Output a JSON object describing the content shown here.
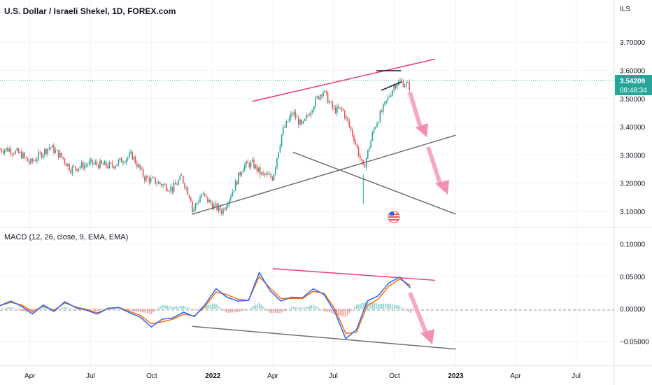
{
  "header": {
    "title": "U.S. Dollar / Israeli Shekel, 1D, FOREX.com",
    "currency": "ILS"
  },
  "indicator": {
    "title": "MACD (12, 26, close, 9, EMA, EMA)"
  },
  "badge": {
    "price": "3.54209",
    "countdown": "08:48:34"
  },
  "colors": {
    "up": "#26a69a",
    "down": "#ef5350",
    "trend_pink": "#f0387a",
    "trend_gray": "#707070",
    "macd_line": "#2962ff",
    "signal_line": "#ff6d00",
    "arrow": "#f48fb1",
    "badge": "#26a69a"
  },
  "icons": [
    "us-flag-icon",
    "pink-arrow-icon"
  ],
  "chart_data": [
    {
      "type": "candlestick",
      "y_ticks": [
        "3.70000",
        "3.60000",
        "3.50000",
        "3.40000",
        "3.30000",
        "3.20000",
        "3.10000"
      ],
      "x_ticks": [
        "Apr",
        "Jul",
        "Oct",
        "2022",
        "Apr",
        "Jul",
        "Oct",
        "2023",
        "Apr",
        "Jul"
      ],
      "ylim": [
        3.06,
        3.78
      ],
      "last_price": 3.54209,
      "series_points": [
        {
          "x": "2021-03",
          "y": 3.32
        },
        {
          "x": "2021-03-20",
          "y": 3.3
        },
        {
          "x": "2021-04",
          "y": 3.27
        },
        {
          "x": "2021-05-01",
          "y": 3.33
        },
        {
          "x": "2021-05-20",
          "y": 3.29
        },
        {
          "x": "2021-06",
          "y": 3.25
        },
        {
          "x": "2021-07",
          "y": 3.27
        },
        {
          "x": "2021-08",
          "y": 3.26
        },
        {
          "x": "2021-09",
          "y": 3.3
        },
        {
          "x": "2021-09-20",
          "y": 3.22
        },
        {
          "x": "2021-10",
          "y": 3.21
        },
        {
          "x": "2021-11",
          "y": 3.18
        },
        {
          "x": "2021-11-15",
          "y": 3.22
        },
        {
          "x": "2021-11-30",
          "y": 3.14
        },
        {
          "x": "2021-12",
          "y": 3.1
        },
        {
          "x": "2021-12-15",
          "y": 3.16
        },
        {
          "x": "2022-01",
          "y": 3.12
        },
        {
          "x": "2022-01-15",
          "y": 3.1
        },
        {
          "x": "2022-02",
          "y": 3.18
        },
        {
          "x": "2022-02-15",
          "y": 3.26
        },
        {
          "x": "2022-03",
          "y": 3.27
        },
        {
          "x": "2022-03-15",
          "y": 3.23
        },
        {
          "x": "2022-04",
          "y": 3.22
        },
        {
          "x": "2022-04-15",
          "y": 3.38
        },
        {
          "x": "2022-05",
          "y": 3.45
        },
        {
          "x": "2022-05-15",
          "y": 3.4
        },
        {
          "x": "2022-06",
          "y": 3.48
        },
        {
          "x": "2022-06-15",
          "y": 3.53
        },
        {
          "x": "2022-07",
          "y": 3.46
        },
        {
          "x": "2022-07-15",
          "y": 3.46
        },
        {
          "x": "2022-08",
          "y": 3.36
        },
        {
          "x": "2022-08-15",
          "y": 3.25
        },
        {
          "x": "2022-09",
          "y": 3.4
        },
        {
          "x": "2022-09-15",
          "y": 3.47
        },
        {
          "x": "2022-10",
          "y": 3.55
        },
        {
          "x": "2022-10-10",
          "y": 3.56
        },
        {
          "x": "2022-10-25",
          "y": 3.54
        }
      ],
      "trendlines": [
        {
          "color": "pink",
          "from": {
            "x": "2022-03",
            "y": 3.49
          },
          "to": {
            "x": "2022-12",
            "y": 3.64
          }
        },
        {
          "color": "gray",
          "from": {
            "x": "2021-12",
            "y": 3.09
          },
          "to": {
            "x": "2023-01",
            "y": 3.37
          }
        },
        {
          "color": "gray",
          "from": {
            "x": "2022-05",
            "y": 3.31
          },
          "to": {
            "x": "2023-01",
            "y": 3.09
          }
        }
      ]
    },
    {
      "type": "line",
      "y_ticks": [
        "0.10000",
        "0.05000",
        "0.00000",
        "−0.05000"
      ],
      "x_ticks": [
        "Apr",
        "Jul",
        "Oct",
        "2022",
        "Apr",
        "Jul",
        "Oct",
        "2023",
        "Apr",
        "Jul"
      ],
      "ylim": [
        -0.085,
        0.12
      ],
      "series": [
        {
          "name": "MACD",
          "values": [
            0.005,
            0.012,
            0.004,
            -0.008,
            0.006,
            -0.004,
            0.011,
            0.002,
            -0.002,
            -0.008,
            0.001,
            0.002,
            -0.006,
            -0.013,
            -0.028,
            -0.016,
            -0.014,
            -0.005,
            -0.012,
            0.007,
            0.031,
            0.018,
            0.012,
            0.013,
            0.056,
            0.028,
            0.012,
            0.018,
            0.017,
            0.031,
            0.022,
            -0.005,
            -0.046,
            -0.032,
            0.012,
            0.02,
            0.04,
            0.049,
            0.032
          ]
        },
        {
          "name": "Signal",
          "values": [
            0.005,
            0.01,
            0.006,
            -0.004,
            0.004,
            -0.002,
            0.009,
            0.003,
            -0.001,
            -0.006,
            0.0,
            0.002,
            -0.004,
            -0.01,
            -0.023,
            -0.02,
            -0.016,
            -0.008,
            -0.011,
            0.004,
            0.026,
            0.022,
            0.015,
            0.013,
            0.05,
            0.032,
            0.016,
            0.016,
            0.016,
            0.027,
            0.024,
            0.0,
            -0.038,
            -0.036,
            0.005,
            0.015,
            0.035,
            0.046,
            0.036
          ]
        }
      ],
      "trendlines": [
        {
          "color": "pink",
          "from": {
            "x": "2022-04",
            "y": 0.062
          },
          "to": {
            "x": "2022-12",
            "y": 0.044
          }
        },
        {
          "color": "gray",
          "from": {
            "x": "2021-12",
            "y": -0.027
          },
          "to": {
            "x": "2023-01",
            "y": -0.062
          }
        }
      ]
    }
  ]
}
